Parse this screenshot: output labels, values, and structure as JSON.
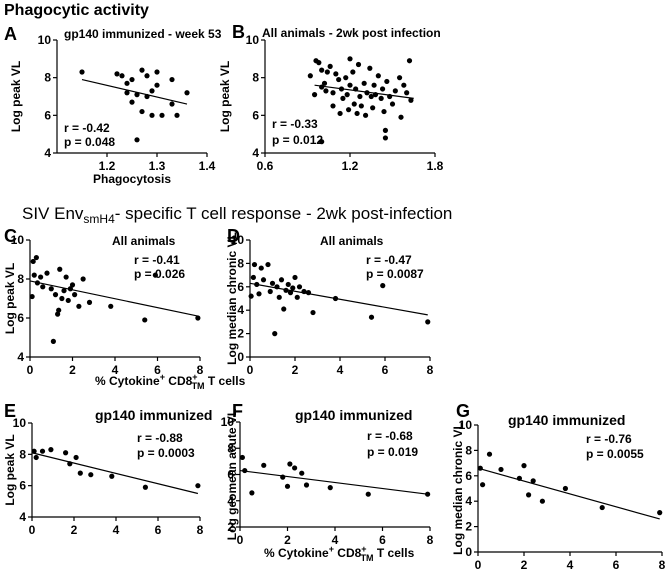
{
  "sections": {
    "phagocytic": "Phagocytic activity",
    "siv_prefix": "SIV Env",
    "siv_sub": "smH4",
    "siv_suffix": "- specific T cell response - 2wk post-infection"
  },
  "shared_xlabel": {
    "prefix": "% Cytokine",
    "sup1": "+",
    "mid": " CD8",
    "sup2": "+",
    "sub": "TM",
    "suffix": " T cells"
  },
  "chart_data": [
    {
      "id": "A",
      "letter": "A",
      "type": "scatter",
      "title": "gp140 immunized - week 53",
      "xlabel": "Phagocytosis",
      "ylabel": "Log peak VL",
      "xlim": [
        1.1,
        1.4
      ],
      "ylim": [
        4,
        10
      ],
      "xticks": [
        "1.2",
        "1.3",
        "1.4"
      ],
      "xtick_values": [
        1.2,
        1.3,
        1.4
      ],
      "yticks": [
        "4",
        "6",
        "8",
        "10"
      ],
      "ytick_values": [
        4,
        6,
        8,
        10
      ],
      "stat_r": "r = -0.42",
      "stat_p": "p = 0.048",
      "fit": [
        [
          1.15,
          7.9
        ],
        [
          1.36,
          6.6
        ]
      ],
      "points": [
        [
          1.15,
          8.3
        ],
        [
          1.22,
          8.2
        ],
        [
          1.23,
          8.1
        ],
        [
          1.24,
          7.7
        ],
        [
          1.24,
          7.2
        ],
        [
          1.25,
          6.7
        ],
        [
          1.25,
          7.9
        ],
        [
          1.26,
          7.1
        ],
        [
          1.26,
          4.7
        ],
        [
          1.27,
          8.4
        ],
        [
          1.27,
          6.2
        ],
        [
          1.28,
          8.1
        ],
        [
          1.28,
          7.0
        ],
        [
          1.29,
          7.3
        ],
        [
          1.29,
          6.0
        ],
        [
          1.3,
          8.3
        ],
        [
          1.3,
          7.6
        ],
        [
          1.31,
          6.0
        ],
        [
          1.33,
          7.9
        ],
        [
          1.33,
          6.6
        ],
        [
          1.34,
          6.0
        ],
        [
          1.36,
          7.2
        ]
      ]
    },
    {
      "id": "B",
      "letter": "B",
      "type": "scatter",
      "title": "All animals - 2wk post infection",
      "xlabel": "",
      "ylabel": "Log peak VL",
      "xlim": [
        0.6,
        1.8
      ],
      "ylim": [
        4,
        10
      ],
      "xticks": [
        "0.6",
        "1.2",
        "1.8"
      ],
      "xtick_values": [
        0.6,
        1.2,
        1.8
      ],
      "yticks": [
        "4",
        "6",
        "8",
        "10"
      ],
      "ytick_values": [
        4,
        6,
        8,
        10
      ],
      "stat_r": "r = -0.33",
      "stat_p": "p = 0.012",
      "fit": [
        [
          0.95,
          7.6
        ],
        [
          1.65,
          6.9
        ]
      ],
      "points": [
        [
          0.92,
          8.1
        ],
        [
          0.96,
          8.9
        ],
        [
          0.98,
          8.8
        ],
        [
          1.0,
          8.4
        ],
        [
          1.02,
          7.7
        ],
        [
          1.04,
          8.3
        ],
        [
          0.95,
          7.1
        ],
        [
          1.0,
          7.5
        ],
        [
          1.03,
          7.3
        ],
        [
          1.06,
          8.6
        ],
        [
          1.08,
          7.2
        ],
        [
          1.1,
          8.2
        ],
        [
          1.12,
          7.9
        ],
        [
          1.14,
          7.4
        ],
        [
          1.15,
          6.9
        ],
        [
          1.17,
          8.0
        ],
        [
          1.18,
          7.1
        ],
        [
          1.19,
          6.3
        ],
        [
          1.2,
          7.6
        ],
        [
          1.2,
          9.0
        ],
        [
          1.22,
          8.3
        ],
        [
          1.23,
          6.6
        ],
        [
          1.24,
          7.4
        ],
        [
          1.25,
          6.1
        ],
        [
          1.26,
          8.7
        ],
        [
          1.27,
          7.0
        ],
        [
          1.28,
          6.5
        ],
        [
          1.3,
          7.7
        ],
        [
          1.31,
          6.0
        ],
        [
          1.32,
          7.2
        ],
        [
          1.34,
          8.5
        ],
        [
          1.35,
          7.0
        ],
        [
          1.36,
          6.4
        ],
        [
          1.37,
          7.6
        ],
        [
          1.38,
          7.1
        ],
        [
          1.4,
          8.1
        ],
        [
          1.42,
          6.9
        ],
        [
          1.43,
          7.4
        ],
        [
          1.44,
          6.2
        ],
        [
          1.45,
          5.2
        ],
        [
          1.46,
          7.8
        ],
        [
          1.48,
          7.0
        ],
        [
          1.5,
          6.6
        ],
        [
          1.52,
          7.3
        ],
        [
          1.55,
          8.0
        ],
        [
          1.56,
          5.9
        ],
        [
          1.58,
          7.6
        ],
        [
          1.6,
          7.2
        ],
        [
          1.62,
          8.9
        ],
        [
          1.63,
          6.8
        ],
        [
          1.45,
          4.8
        ],
        [
          1.0,
          4.6
        ],
        [
          1.08,
          6.5
        ],
        [
          1.13,
          6.1
        ]
      ]
    },
    {
      "id": "C",
      "letter": "C",
      "type": "scatter",
      "title": "All animals",
      "xlabel": "shared",
      "ylabel": "Log peak VL",
      "xlim": [
        0,
        8
      ],
      "ylim": [
        4,
        10
      ],
      "xticks": [
        "0",
        "2",
        "4",
        "6",
        "8"
      ],
      "xtick_values": [
        0,
        2,
        4,
        6,
        8
      ],
      "yticks": [
        "4",
        "6",
        "8",
        "10"
      ],
      "ytick_values": [
        4,
        6,
        8,
        10
      ],
      "stat_r": "r = -0.41",
      "stat_p": "p = 0.026",
      "fit": [
        [
          0.0,
          7.9
        ],
        [
          7.9,
          6.1
        ]
      ],
      "points": [
        [
          0.1,
          7.1
        ],
        [
          0.15,
          8.9
        ],
        [
          0.2,
          8.2
        ],
        [
          0.3,
          9.1
        ],
        [
          0.35,
          7.8
        ],
        [
          0.5,
          8.1
        ],
        [
          0.6,
          7.6
        ],
        [
          0.8,
          8.3
        ],
        [
          1.0,
          7.5
        ],
        [
          1.1,
          4.8
        ],
        [
          1.2,
          7.2
        ],
        [
          1.3,
          6.2
        ],
        [
          1.35,
          6.4
        ],
        [
          1.4,
          8.5
        ],
        [
          1.5,
          7.0
        ],
        [
          1.6,
          7.4
        ],
        [
          1.7,
          8.1
        ],
        [
          1.8,
          6.9
        ],
        [
          1.9,
          7.5
        ],
        [
          2.0,
          7.7
        ],
        [
          2.1,
          7.2
        ],
        [
          2.3,
          6.6
        ],
        [
          2.5,
          8.0
        ],
        [
          2.8,
          6.8
        ],
        [
          3.8,
          6.6
        ],
        [
          5.4,
          5.9
        ],
        [
          5.9,
          8.2
        ],
        [
          7.9,
          6.0
        ]
      ]
    },
    {
      "id": "D",
      "letter": "D",
      "type": "scatter",
      "title": "All animals",
      "xlabel": "",
      "ylabel": "Log median chronic VL",
      "xlim": [
        0,
        8
      ],
      "ylim": [
        0,
        10
      ],
      "xticks": [
        "0",
        "2",
        "4",
        "6",
        "8"
      ],
      "xtick_values": [
        0,
        2,
        4,
        6,
        8
      ],
      "yticks": [
        "0",
        "2",
        "4",
        "6",
        "8",
        "10"
      ],
      "ytick_values": [
        0,
        2,
        4,
        6,
        8,
        10
      ],
      "stat_r": "r = -0.47",
      "stat_p": "p = 0.0087",
      "fit": [
        [
          0.0,
          6.3
        ],
        [
          7.9,
          3.6
        ]
      ],
      "points": [
        [
          0.05,
          5.2
        ],
        [
          0.15,
          6.8
        ],
        [
          0.2,
          7.9
        ],
        [
          0.3,
          6.2
        ],
        [
          0.4,
          5.4
        ],
        [
          0.5,
          7.6
        ],
        [
          0.6,
          6.6
        ],
        [
          0.8,
          7.9
        ],
        [
          0.9,
          5.6
        ],
        [
          1.0,
          6.3
        ],
        [
          1.1,
          2.0
        ],
        [
          1.2,
          6.0
        ],
        [
          1.3,
          5.1
        ],
        [
          1.4,
          6.6
        ],
        [
          1.5,
          4.1
        ],
        [
          1.6,
          5.7
        ],
        [
          1.7,
          6.2
        ],
        [
          1.8,
          5.5
        ],
        [
          1.9,
          5.9
        ],
        [
          2.0,
          6.8
        ],
        [
          2.1,
          5.1
        ],
        [
          2.2,
          6.0
        ],
        [
          2.4,
          5.6
        ],
        [
          2.6,
          5.5
        ],
        [
          2.8,
          3.8
        ],
        [
          3.8,
          5.0
        ],
        [
          5.4,
          3.4
        ],
        [
          5.9,
          6.1
        ],
        [
          7.9,
          3.0
        ]
      ]
    },
    {
      "id": "E",
      "letter": "E",
      "type": "scatter",
      "title": "gp140 immunized",
      "xlabel": "",
      "ylabel": "Log peak VL",
      "xlim": [
        0,
        8
      ],
      "ylim": [
        4,
        10
      ],
      "xticks": [
        "0",
        "2",
        "4",
        "6",
        "8"
      ],
      "xtick_values": [
        0,
        2,
        4,
        6,
        8
      ],
      "yticks": [
        "4",
        "6",
        "8",
        "10"
      ],
      "ytick_values": [
        4,
        6,
        8,
        10
      ],
      "stat_r": "r = -0.88",
      "stat_p": "p = 0.0003",
      "fit": [
        [
          0.0,
          8.1
        ],
        [
          7.9,
          5.5
        ]
      ],
      "points": [
        [
          0.1,
          8.2
        ],
        [
          0.2,
          7.8
        ],
        [
          0.5,
          8.2
        ],
        [
          0.9,
          8.3
        ],
        [
          1.6,
          8.1
        ],
        [
          1.8,
          7.4
        ],
        [
          2.1,
          7.8
        ],
        [
          2.3,
          6.8
        ],
        [
          2.8,
          6.7
        ],
        [
          3.8,
          6.6
        ],
        [
          5.4,
          5.9
        ],
        [
          7.9,
          6.0
        ]
      ]
    },
    {
      "id": "F",
      "letter": "F",
      "type": "scatter",
      "title": "gp140 immunized",
      "xlabel": "shared",
      "ylabel": "Log geomean acute VL",
      "xlim": [
        0,
        8
      ],
      "ylim": [
        2,
        10
      ],
      "xticks": [
        "0",
        "2",
        "4",
        "6",
        "8"
      ],
      "xtick_values": [
        0,
        2,
        4,
        6,
        8
      ],
      "yticks": [
        "2",
        "4",
        "6",
        "8",
        "10"
      ],
      "ytick_values": [
        2,
        4,
        6,
        8,
        10
      ],
      "stat_r": "r = -0.68",
      "stat_p": "p = 0.019",
      "fit": [
        [
          0.0,
          6.3
        ],
        [
          7.9,
          4.5
        ]
      ],
      "points": [
        [
          0.1,
          7.3
        ],
        [
          0.2,
          6.3
        ],
        [
          0.5,
          4.6
        ],
        [
          1.0,
          6.7
        ],
        [
          1.8,
          5.8
        ],
        [
          2.0,
          5.1
        ],
        [
          2.1,
          6.8
        ],
        [
          2.3,
          6.5
        ],
        [
          2.6,
          6.1
        ],
        [
          2.8,
          5.2
        ],
        [
          3.8,
          5.0
        ],
        [
          5.4,
          4.5
        ],
        [
          7.9,
          4.5
        ]
      ]
    },
    {
      "id": "G",
      "letter": "G",
      "type": "scatter",
      "title": "gp140 immunized",
      "xlabel": "",
      "ylabel": "Log median chronic VL",
      "xlim": [
        0,
        8
      ],
      "ylim": [
        0,
        10
      ],
      "xticks": [
        "0",
        "2",
        "4",
        "6",
        "8"
      ],
      "xtick_values": [
        0,
        2,
        4,
        6,
        8
      ],
      "yticks": [
        "0",
        "2",
        "4",
        "6",
        "8",
        "10"
      ],
      "ytick_values": [
        0,
        2,
        4,
        6,
        8,
        10
      ],
      "stat_r": "r = -0.76",
      "stat_p": "p = 0.0055",
      "fit": [
        [
          0.0,
          6.6
        ],
        [
          7.9,
          2.6
        ]
      ],
      "points": [
        [
          0.1,
          6.6
        ],
        [
          0.2,
          5.3
        ],
        [
          0.5,
          7.7
        ],
        [
          1.0,
          6.5
        ],
        [
          1.8,
          5.8
        ],
        [
          2.0,
          6.8
        ],
        [
          2.2,
          4.5
        ],
        [
          2.4,
          5.6
        ],
        [
          2.8,
          4.0
        ],
        [
          3.8,
          5.0
        ],
        [
          5.4,
          3.5
        ],
        [
          7.9,
          3.1
        ]
      ]
    }
  ]
}
